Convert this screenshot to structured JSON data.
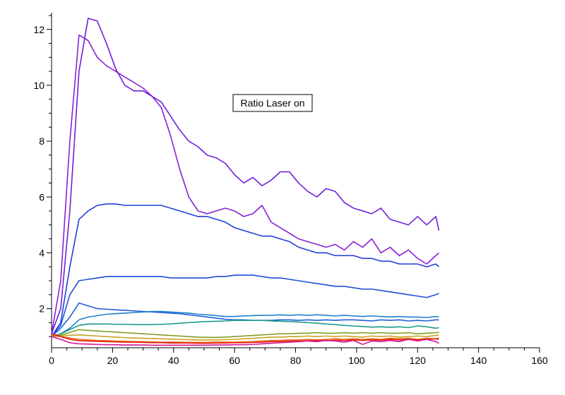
{
  "chart_data": {
    "type": "line",
    "title": "",
    "xlabel": "",
    "ylabel": "",
    "xlim": [
      0,
      160
    ],
    "ylim": [
      0.6,
      12.6
    ],
    "x_ticks": [
      0,
      20,
      40,
      60,
      80,
      100,
      120,
      140,
      160
    ],
    "y_ticks": [
      2,
      4,
      6,
      8,
      10,
      12
    ],
    "grid": false,
    "annotation": "Ratio Laser on",
    "annotation_position": "upper-middle",
    "series": [
      {
        "color": "#8a1fd6",
        "x": [
          0,
          3,
          6,
          9,
          12,
          15,
          18,
          21,
          24,
          27,
          30,
          33,
          36,
          39,
          42,
          45,
          48,
          51,
          54,
          57,
          60,
          63,
          66,
          69,
          72,
          75,
          78,
          81,
          84,
          87,
          90,
          93,
          96,
          99,
          102,
          105,
          108,
          111,
          114,
          117,
          120,
          123,
          126,
          127
        ],
        "y": [
          1.1,
          3.0,
          8.0,
          11.8,
          11.6,
          11.0,
          10.7,
          10.5,
          10.3,
          10.1,
          9.9,
          9.6,
          9.2,
          8.2,
          7.0,
          6.0,
          5.5,
          5.4,
          5.5,
          5.6,
          5.5,
          5.3,
          5.4,
          5.7,
          5.1,
          4.9,
          4.7,
          4.5,
          4.4,
          4.3,
          4.2,
          4.3,
          4.1,
          4.4,
          4.2,
          4.5,
          4.0,
          4.2,
          3.9,
          4.1,
          3.8,
          3.6,
          3.9,
          4.0
        ]
      },
      {
        "color": "#6f1fd8",
        "x": [
          0,
          3,
          6,
          9,
          12,
          15,
          18,
          21,
          24,
          27,
          30,
          33,
          36,
          39,
          42,
          45,
          48,
          51,
          54,
          57,
          60,
          63,
          66,
          69,
          72,
          75,
          78,
          81,
          84,
          87,
          90,
          93,
          96,
          99,
          102,
          105,
          108,
          111,
          114,
          117,
          120,
          123,
          126,
          127
        ],
        "y": [
          1.1,
          2.0,
          5.5,
          10.5,
          12.4,
          12.3,
          11.5,
          10.6,
          10.0,
          9.8,
          9.8,
          9.6,
          9.4,
          8.9,
          8.4,
          8.0,
          7.8,
          7.5,
          7.4,
          7.2,
          6.8,
          6.5,
          6.7,
          6.4,
          6.6,
          6.9,
          6.9,
          6.5,
          6.2,
          6.0,
          6.3,
          6.2,
          5.8,
          5.6,
          5.5,
          5.4,
          5.6,
          5.2,
          5.1,
          5.0,
          5.3,
          5.0,
          5.3,
          4.8
        ]
      },
      {
        "color": "#1f3fd6",
        "x": [
          0,
          3,
          6,
          9,
          12,
          15,
          18,
          21,
          24,
          27,
          30,
          33,
          36,
          39,
          42,
          45,
          48,
          51,
          54,
          57,
          60,
          63,
          66,
          69,
          72,
          75,
          78,
          81,
          84,
          87,
          90,
          93,
          96,
          99,
          102,
          105,
          108,
          111,
          114,
          117,
          120,
          123,
          126,
          127
        ],
        "y": [
          1.0,
          1.5,
          3.5,
          5.2,
          5.5,
          5.7,
          5.75,
          5.75,
          5.7,
          5.7,
          5.7,
          5.7,
          5.7,
          5.6,
          5.5,
          5.4,
          5.3,
          5.3,
          5.2,
          5.1,
          4.9,
          4.8,
          4.7,
          4.6,
          4.6,
          4.5,
          4.4,
          4.2,
          4.1,
          4.0,
          4.0,
          3.9,
          3.9,
          3.9,
          3.8,
          3.8,
          3.7,
          3.7,
          3.6,
          3.6,
          3.6,
          3.5,
          3.6,
          3.5
        ]
      },
      {
        "color": "#1f4fd8",
        "x": [
          0,
          3,
          6,
          9,
          12,
          15,
          18,
          21,
          24,
          27,
          30,
          33,
          36,
          39,
          42,
          45,
          48,
          51,
          54,
          57,
          60,
          63,
          66,
          69,
          72,
          75,
          78,
          81,
          84,
          87,
          90,
          93,
          96,
          99,
          102,
          105,
          108,
          111,
          114,
          117,
          120,
          123,
          126,
          127
        ],
        "y": [
          1.0,
          1.4,
          2.5,
          3.0,
          3.05,
          3.1,
          3.15,
          3.15,
          3.15,
          3.15,
          3.15,
          3.15,
          3.15,
          3.1,
          3.1,
          3.1,
          3.1,
          3.1,
          3.15,
          3.15,
          3.2,
          3.2,
          3.2,
          3.15,
          3.1,
          3.1,
          3.05,
          3.0,
          2.95,
          2.9,
          2.85,
          2.8,
          2.8,
          2.75,
          2.7,
          2.7,
          2.65,
          2.6,
          2.55,
          2.5,
          2.45,
          2.4,
          2.5,
          2.55
        ]
      },
      {
        "color": "#1f5fd6",
        "x": [
          0,
          3,
          6,
          9,
          12,
          15,
          18,
          21,
          24,
          27,
          30,
          33,
          36,
          39,
          42,
          45,
          48,
          51,
          54,
          57,
          60,
          63,
          66,
          69,
          72,
          75,
          78,
          81,
          84,
          87,
          90,
          93,
          96,
          99,
          102,
          105,
          108,
          111,
          114,
          117,
          120,
          123,
          126,
          127
        ],
        "y": [
          1.0,
          1.3,
          1.7,
          2.2,
          2.1,
          2.0,
          1.98,
          1.96,
          1.94,
          1.92,
          1.9,
          1.88,
          1.86,
          1.84,
          1.82,
          1.78,
          1.74,
          1.7,
          1.66,
          1.62,
          1.6,
          1.6,
          1.58,
          1.58,
          1.58,
          1.6,
          1.6,
          1.58,
          1.6,
          1.58,
          1.6,
          1.58,
          1.6,
          1.6,
          1.58,
          1.56,
          1.6,
          1.58,
          1.6,
          1.56,
          1.58,
          1.56,
          1.6,
          1.6
        ]
      },
      {
        "color": "#1f7fd0",
        "x": [
          0,
          3,
          6,
          9,
          12,
          15,
          18,
          21,
          24,
          27,
          30,
          33,
          36,
          39,
          42,
          45,
          48,
          51,
          54,
          57,
          60,
          63,
          66,
          69,
          72,
          75,
          78,
          81,
          84,
          87,
          90,
          93,
          96,
          99,
          102,
          105,
          108,
          111,
          114,
          117,
          120,
          123,
          126,
          127
        ],
        "y": [
          1.0,
          1.1,
          1.3,
          1.6,
          1.7,
          1.75,
          1.8,
          1.82,
          1.84,
          1.86,
          1.88,
          1.9,
          1.9,
          1.88,
          1.86,
          1.84,
          1.8,
          1.78,
          1.75,
          1.72,
          1.72,
          1.74,
          1.75,
          1.76,
          1.76,
          1.78,
          1.76,
          1.78,
          1.76,
          1.78,
          1.76,
          1.74,
          1.76,
          1.74,
          1.72,
          1.74,
          1.72,
          1.7,
          1.72,
          1.7,
          1.7,
          1.68,
          1.72,
          1.7
        ]
      },
      {
        "color": "#1a9a8a",
        "x": [
          0,
          3,
          6,
          9,
          12,
          15,
          18,
          21,
          24,
          27,
          30,
          33,
          36,
          39,
          42,
          45,
          48,
          51,
          54,
          57,
          60,
          63,
          66,
          69,
          72,
          75,
          78,
          81,
          84,
          87,
          90,
          93,
          96,
          99,
          102,
          105,
          108,
          111,
          114,
          117,
          120,
          123,
          126,
          127
        ],
        "y": [
          1.0,
          1.1,
          1.25,
          1.4,
          1.45,
          1.45,
          1.45,
          1.44,
          1.44,
          1.43,
          1.43,
          1.43,
          1.44,
          1.45,
          1.48,
          1.5,
          1.52,
          1.54,
          1.55,
          1.56,
          1.58,
          1.58,
          1.58,
          1.58,
          1.56,
          1.55,
          1.54,
          1.52,
          1.5,
          1.48,
          1.45,
          1.43,
          1.4,
          1.38,
          1.36,
          1.34,
          1.35,
          1.33,
          1.35,
          1.32,
          1.38,
          1.35,
          1.3,
          1.32
        ]
      },
      {
        "color": "#7fa01f",
        "x": [
          0,
          3,
          6,
          9,
          12,
          15,
          18,
          21,
          24,
          27,
          30,
          33,
          36,
          39,
          42,
          45,
          48,
          51,
          54,
          57,
          60,
          63,
          66,
          69,
          72,
          75,
          78,
          81,
          84,
          87,
          90,
          93,
          96,
          99,
          102,
          105,
          108,
          111,
          114,
          117,
          120,
          123,
          126,
          127
        ],
        "y": [
          1.0,
          1.05,
          1.15,
          1.25,
          1.22,
          1.2,
          1.18,
          1.16,
          1.14,
          1.12,
          1.1,
          1.08,
          1.06,
          1.04,
          1.02,
          1.0,
          0.98,
          0.97,
          0.97,
          0.98,
          1.0,
          1.02,
          1.04,
          1.06,
          1.08,
          1.1,
          1.1,
          1.12,
          1.12,
          1.14,
          1.12,
          1.12,
          1.14,
          1.12,
          1.14,
          1.12,
          1.14,
          1.12,
          1.12,
          1.14,
          1.1,
          1.12,
          1.14,
          1.16
        ]
      },
      {
        "color": "#c9a21f",
        "x": [
          0,
          3,
          6,
          9,
          12,
          15,
          18,
          21,
          24,
          27,
          30,
          33,
          36,
          39,
          42,
          45,
          48,
          51,
          54,
          57,
          60,
          63,
          66,
          69,
          72,
          75,
          78,
          81,
          84,
          87,
          90,
          93,
          96,
          99,
          102,
          105,
          108,
          111,
          114,
          117,
          120,
          123,
          126,
          127
        ],
        "y": [
          1.0,
          1.02,
          1.05,
          1.06,
          1.04,
          1.02,
          1.0,
          0.98,
          0.96,
          0.95,
          0.94,
          0.93,
          0.92,
          0.91,
          0.9,
          0.89,
          0.88,
          0.88,
          0.88,
          0.89,
          0.9,
          0.92,
          0.94,
          0.96,
          0.98,
          0.98,
          1.0,
          1.0,
          1.02,
          1.0,
          1.02,
          1.0,
          1.02,
          1.0,
          0.98,
          1.02,
          1.0,
          1.02,
          0.98,
          1.0,
          1.02,
          1.0,
          1.04,
          1.05
        ]
      },
      {
        "color": "#e06a10",
        "x": [
          0,
          3,
          6,
          9,
          12,
          15,
          18,
          21,
          24,
          27,
          30,
          33,
          36,
          39,
          42,
          45,
          48,
          51,
          54,
          57,
          60,
          63,
          66,
          69,
          72,
          75,
          78,
          81,
          84,
          87,
          90,
          93,
          96,
          99,
          102,
          105,
          108,
          111,
          114,
          117,
          120,
          123,
          126,
          127
        ],
        "y": [
          1.05,
          1.0,
          0.95,
          0.9,
          0.88,
          0.86,
          0.85,
          0.84,
          0.83,
          0.82,
          0.82,
          0.81,
          0.8,
          0.8,
          0.8,
          0.79,
          0.79,
          0.79,
          0.8,
          0.8,
          0.8,
          0.81,
          0.82,
          0.84,
          0.86,
          0.86,
          0.88,
          0.88,
          0.9,
          0.88,
          0.9,
          0.92,
          0.9,
          0.92,
          0.9,
          0.92,
          0.9,
          0.94,
          0.92,
          0.94,
          0.9,
          0.94,
          0.92,
          0.95
        ]
      },
      {
        "color": "#e8201a",
        "x": [
          0,
          3,
          6,
          9,
          12,
          15,
          18,
          21,
          24,
          27,
          30,
          33,
          36,
          39,
          42,
          45,
          48,
          51,
          54,
          57,
          60,
          63,
          66,
          69,
          72,
          75,
          78,
          81,
          84,
          87,
          90,
          93,
          96,
          99,
          102,
          105,
          108,
          111,
          114,
          117,
          120,
          123,
          126,
          127
        ],
        "y": [
          1.1,
          1.0,
          0.9,
          0.85,
          0.84,
          0.83,
          0.82,
          0.81,
          0.8,
          0.8,
          0.79,
          0.78,
          0.78,
          0.77,
          0.77,
          0.77,
          0.76,
          0.76,
          0.77,
          0.77,
          0.78,
          0.78,
          0.79,
          0.8,
          0.82,
          0.82,
          0.84,
          0.84,
          0.85,
          0.86,
          0.85,
          0.87,
          0.86,
          0.88,
          0.86,
          0.88,
          0.87,
          0.9,
          0.88,
          0.9,
          0.88,
          0.9,
          0.92,
          0.9
        ]
      },
      {
        "color": "#d6149a",
        "x": [
          0,
          3,
          6,
          9,
          12,
          15,
          18,
          21,
          24,
          27,
          30,
          33,
          36,
          39,
          42,
          45,
          48,
          51,
          54,
          57,
          60,
          63,
          66,
          69,
          72,
          75,
          78,
          81,
          84,
          87,
          90,
          93,
          96,
          99,
          102,
          105,
          108,
          111,
          114,
          117,
          120,
          123,
          126,
          127
        ],
        "y": [
          1.0,
          0.9,
          0.78,
          0.74,
          0.73,
          0.72,
          0.71,
          0.71,
          0.7,
          0.7,
          0.7,
          0.69,
          0.69,
          0.69,
          0.69,
          0.69,
          0.69,
          0.69,
          0.7,
          0.7,
          0.71,
          0.71,
          0.72,
          0.74,
          0.76,
          0.78,
          0.8,
          0.82,
          0.84,
          0.82,
          0.86,
          0.84,
          0.8,
          0.86,
          0.72,
          0.84,
          0.82,
          0.86,
          0.82,
          0.9,
          0.84,
          0.9,
          0.82,
          0.76
        ]
      }
    ]
  }
}
